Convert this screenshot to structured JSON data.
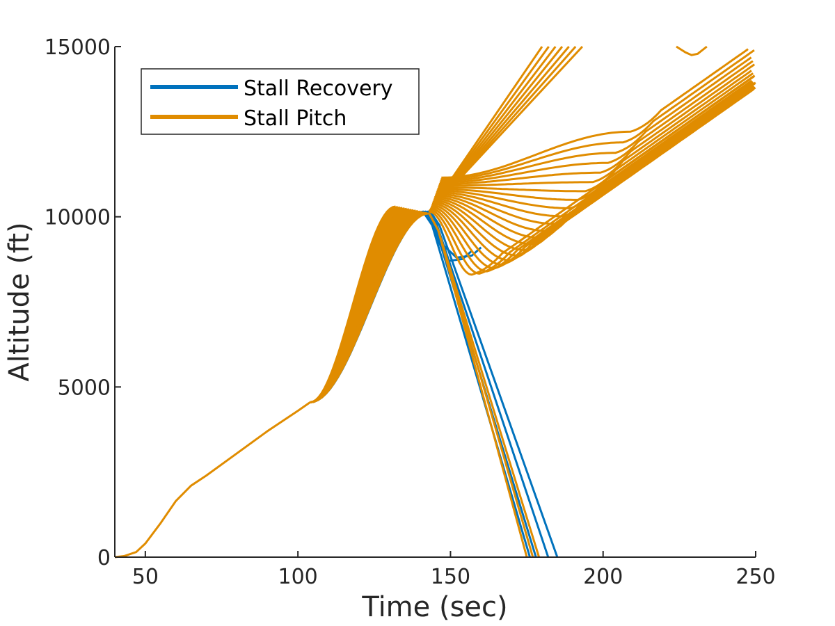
{
  "chart_data": {
    "type": "line",
    "xlabel": "Time (sec)",
    "ylabel": "Altitude (ft)",
    "xlim": [
      40,
      250
    ],
    "ylim": [
      0,
      15000
    ],
    "xticks": [
      50,
      100,
      150,
      200,
      250
    ],
    "yticks": [
      0,
      5000,
      10000,
      15000
    ],
    "xtick_labels": [
      "50",
      "100",
      "150",
      "200",
      "250"
    ],
    "ytick_labels": [
      "0",
      "5000",
      "10000",
      "15000"
    ],
    "grid": false,
    "legend_position": "top-left",
    "colors": {
      "stall_recovery": "#0072BD",
      "stall_pitch": "#E08C00",
      "axis": "#262626"
    },
    "series": [
      {
        "name": "Stall Recovery",
        "color": "#0072BD",
        "kind": "recovery_dives",
        "end_times": [
          176,
          178,
          182,
          185
        ]
      },
      {
        "name": "Stall Pitch",
        "color": "#E08C00",
        "kind": "pitch_runs",
        "end_times": [
          175,
          177,
          179
        ]
      }
    ],
    "ascent_profile": {
      "x": [
        40,
        43,
        47,
        50,
        55,
        60,
        65,
        70,
        80,
        90,
        100,
        104
      ],
      "y": [
        0,
        30,
        150,
        400,
        1000,
        1650,
        2100,
        2400,
        3050,
        3700,
        4300,
        4550
      ]
    },
    "climb_fan": {
      "start_x": 104,
      "start_y": 4550,
      "peak_x_range": [
        132,
        143
      ],
      "peak_y_range": [
        10000,
        10300
      ]
    },
    "recovery_dips": {
      "dip_min_y_range": [
        8300,
        12500
      ],
      "trend_slope_ft_per_sec": 63,
      "top_reversal": {
        "x": 229,
        "y": 14750
      }
    }
  }
}
